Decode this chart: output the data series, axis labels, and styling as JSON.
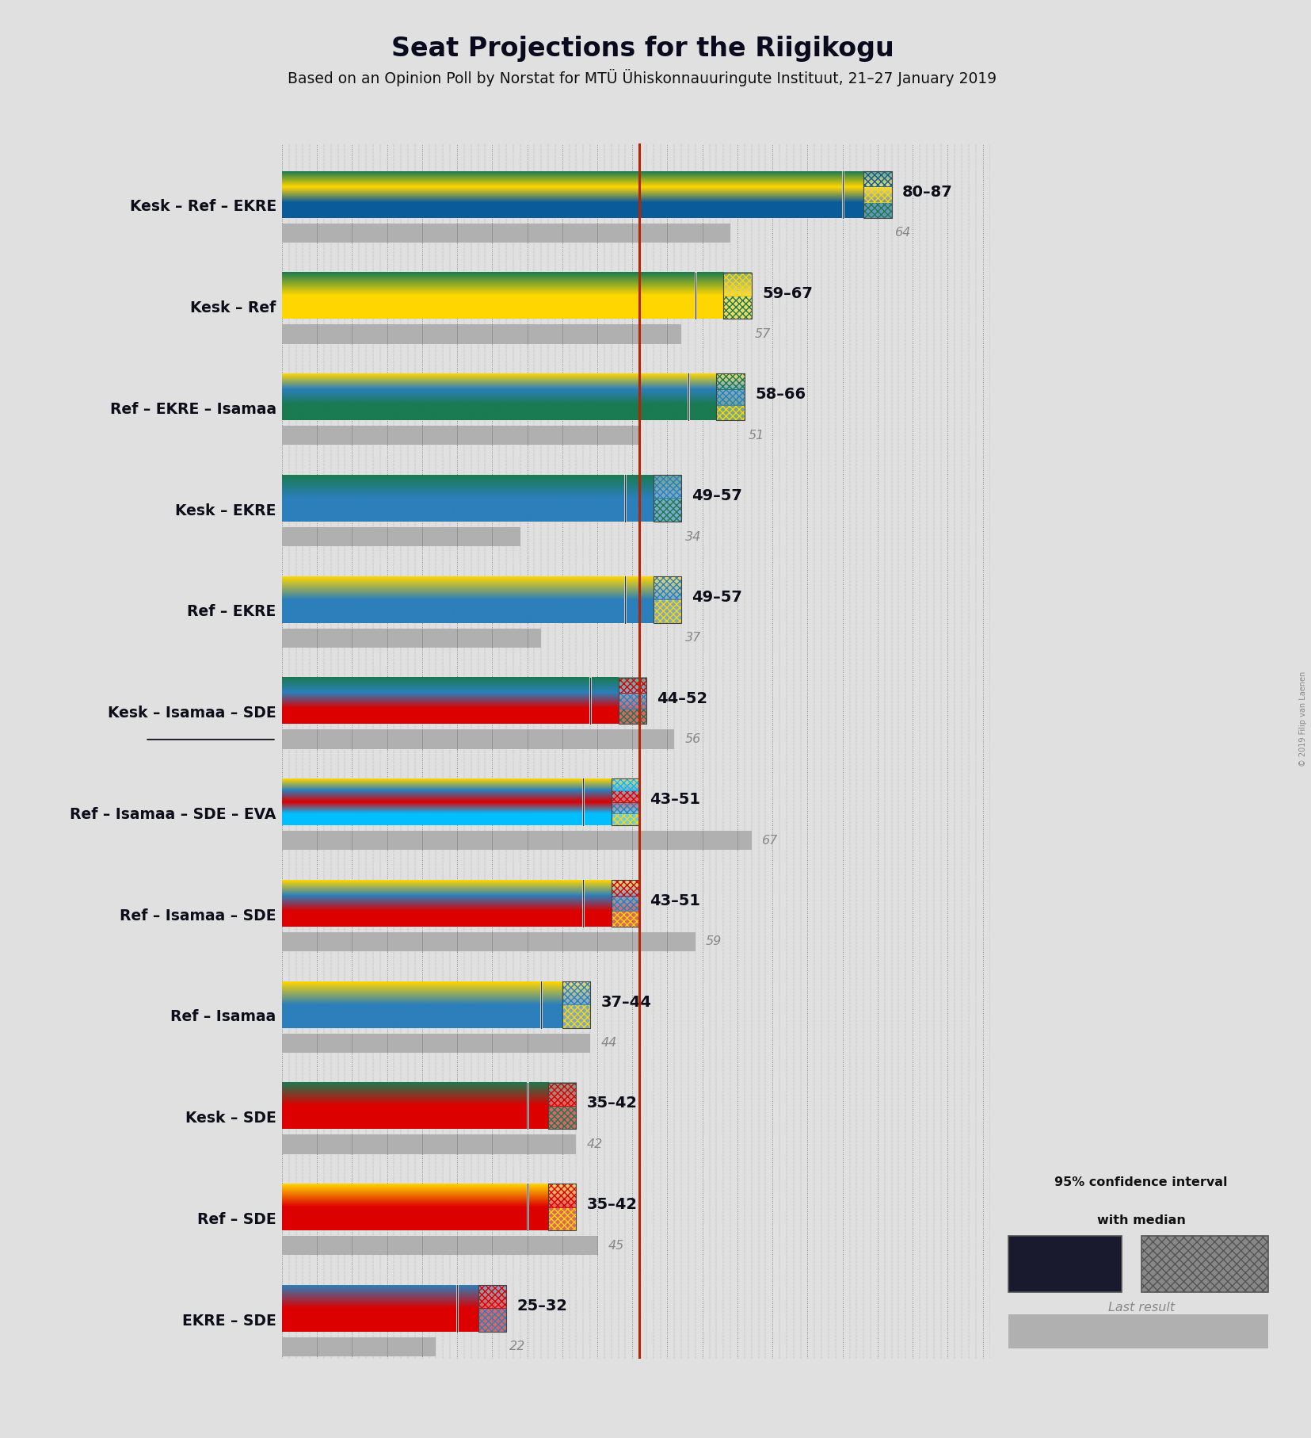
{
  "title": "Seat Projections for the Riigikogu",
  "subtitle": "Based on an Opinion Poll by Norstat for MTÜ Ühiskonnauuringute Instituut, 21–27 January 2019",
  "copyright": "© 2019 Filip van Laenen",
  "bg": "#e0e0e0",
  "majority": 51,
  "x_max": 101,
  "coalitions": [
    {
      "label": "Kesk – Ref – EKRE",
      "ul": false,
      "med": 83,
      "lo": 80,
      "hi": 87,
      "last": 64,
      "rt": "80–87",
      "colors": [
        "#1a7a50",
        "#FFD700",
        "#0a5c9a"
      ]
    },
    {
      "label": "Kesk – Ref",
      "ul": false,
      "med": 63,
      "lo": 59,
      "hi": 67,
      "last": 57,
      "rt": "59–67",
      "colors": [
        "#1a7a50",
        "#FFD700"
      ]
    },
    {
      "label": "Ref – EKRE – Isamaa",
      "ul": false,
      "med": 62,
      "lo": 58,
      "hi": 66,
      "last": 51,
      "rt": "58–66",
      "colors": [
        "#FFD700",
        "#2B7FBB",
        "#1a7a50"
      ]
    },
    {
      "label": "Kesk – EKRE",
      "ul": false,
      "med": 53,
      "lo": 49,
      "hi": 57,
      "last": 34,
      "rt": "49–57",
      "colors": [
        "#1a7a50",
        "#2B7FBB"
      ]
    },
    {
      "label": "Ref – EKRE",
      "ul": false,
      "med": 53,
      "lo": 49,
      "hi": 57,
      "last": 37,
      "rt": "49–57",
      "colors": [
        "#FFD700",
        "#2B7FBB"
      ]
    },
    {
      "label": "Kesk – Isamaa – SDE",
      "ul": true,
      "med": 48,
      "lo": 44,
      "hi": 52,
      "last": 56,
      "rt": "44–52",
      "colors": [
        "#1a7a50",
        "#2B7FBB",
        "#DD0000"
      ]
    },
    {
      "label": "Ref – Isamaa – SDE – EVA",
      "ul": false,
      "med": 47,
      "lo": 43,
      "hi": 51,
      "last": 67,
      "rt": "43–51",
      "colors": [
        "#FFD700",
        "#2B7FBB",
        "#DD0000",
        "#00BFFF"
      ]
    },
    {
      "label": "Ref – Isamaa – SDE",
      "ul": false,
      "med": 47,
      "lo": 43,
      "hi": 51,
      "last": 59,
      "rt": "43–51",
      "colors": [
        "#FFD700",
        "#2B7FBB",
        "#DD0000"
      ]
    },
    {
      "label": "Ref – Isamaa",
      "ul": false,
      "med": 40,
      "lo": 37,
      "hi": 44,
      "last": 44,
      "rt": "37–44",
      "colors": [
        "#FFD700",
        "#2B7FBB"
      ]
    },
    {
      "label": "Kesk – SDE",
      "ul": false,
      "med": 38,
      "lo": 35,
      "hi": 42,
      "last": 42,
      "rt": "35–42",
      "colors": [
        "#1a7a50",
        "#DD0000"
      ]
    },
    {
      "label": "Ref – SDE",
      "ul": false,
      "med": 38,
      "lo": 35,
      "hi": 42,
      "last": 45,
      "rt": "35–42",
      "colors": [
        "#FFD700",
        "#DD0000"
      ]
    },
    {
      "label": "EKRE – SDE",
      "ul": false,
      "med": 28,
      "lo": 25,
      "hi": 32,
      "last": 22,
      "rt": "25–32",
      "colors": [
        "#2B7FBB",
        "#DD0000"
      ]
    }
  ]
}
